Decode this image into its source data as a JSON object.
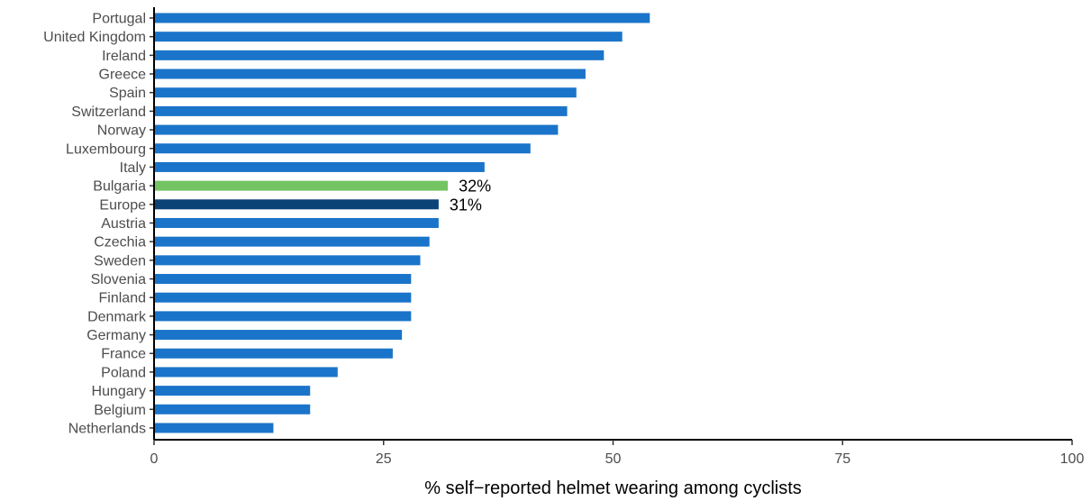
{
  "chart_data": {
    "type": "bar",
    "orientation": "horizontal",
    "categories": [
      "Portugal",
      "United Kingdom",
      "Ireland",
      "Greece",
      "Spain",
      "Switzerland",
      "Norway",
      "Luxembourg",
      "Italy",
      "Bulgaria",
      "Europe",
      "Austria",
      "Czechia",
      "Sweden",
      "Slovenia",
      "Finland",
      "Denmark",
      "Germany",
      "France",
      "Poland",
      "Hungary",
      "Belgium",
      "Netherlands"
    ],
    "values": [
      54,
      51,
      49,
      47,
      46,
      45,
      44,
      41,
      36,
      32,
      31,
      31,
      30,
      29,
      28,
      28,
      28,
      27,
      26,
      20,
      17,
      17,
      13
    ],
    "bar_colors": [
      "#1a74c9",
      "#1a74c9",
      "#1a74c9",
      "#1a74c9",
      "#1a74c9",
      "#1a74c9",
      "#1a74c9",
      "#1a74c9",
      "#1a74c9",
      "#74c463",
      "#0b4377",
      "#1a74c9",
      "#1a74c9",
      "#1a74c9",
      "#1a74c9",
      "#1a74c9",
      "#1a74c9",
      "#1a74c9",
      "#1a74c9",
      "#1a74c9",
      "#1a74c9",
      "#1a74c9",
      "#1a74c9"
    ],
    "data_labels": [
      {
        "category": "Bulgaria",
        "text": "32%"
      },
      {
        "category": "Europe",
        "text": "31%"
      }
    ],
    "title": "",
    "xlabel": "% self−reported helmet wearing among cyclists",
    "ylabel": "",
    "xlim": [
      0,
      100
    ],
    "xticks": [
      0,
      25,
      50,
      75,
      100
    ],
    "xtick_labels": [
      "0",
      "25",
      "50",
      "75",
      "100"
    ],
    "grid": false,
    "legend": "none"
  }
}
